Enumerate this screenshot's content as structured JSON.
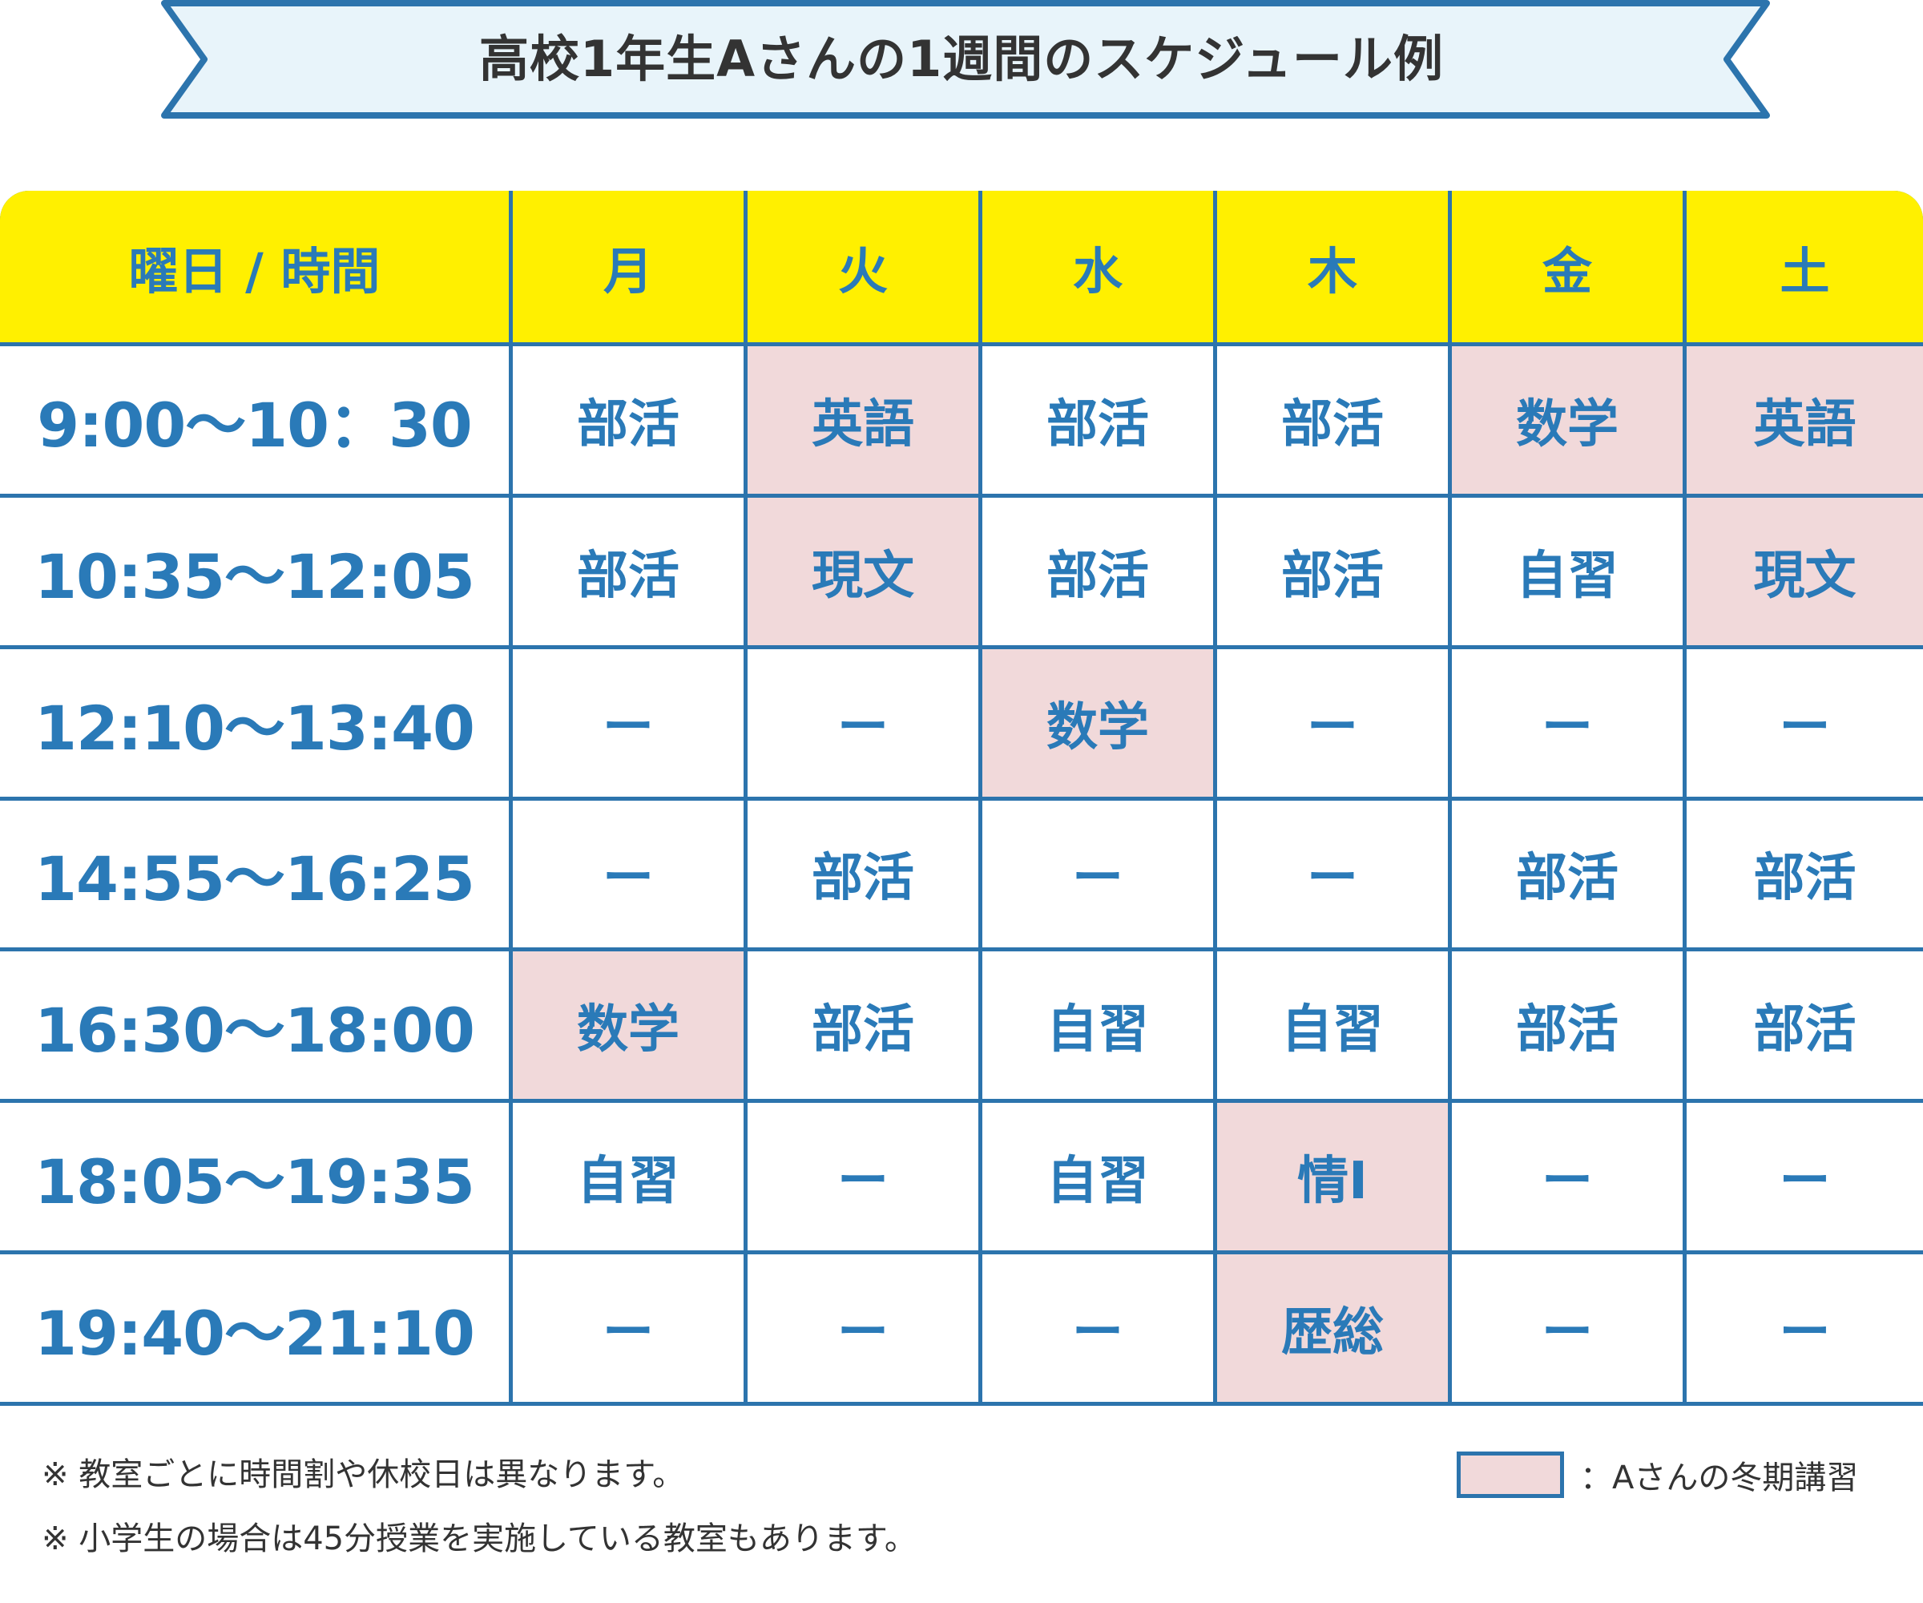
{
  "title": "高校1年生Aさんの1週間のスケジュール例",
  "colors": {
    "header_bg": "#fff000",
    "grid_line": "#2c74ad",
    "text_blue": "#2a7ab8",
    "winter_course_bg": "#f1d9da",
    "banner_bg": "#e8f4fa",
    "banner_border": "#2c74ad"
  },
  "table": {
    "corner_label": "曜日 / 時間",
    "days": [
      "月",
      "火",
      "水",
      "木",
      "金",
      "土"
    ],
    "rows": [
      {
        "time": "9:00〜10：30",
        "cells": [
          {
            "text": "部活",
            "winter": false
          },
          {
            "text": "英語",
            "winter": true
          },
          {
            "text": "部活",
            "winter": false
          },
          {
            "text": "部活",
            "winter": false
          },
          {
            "text": "数学",
            "winter": true
          },
          {
            "text": "英語",
            "winter": true
          }
        ]
      },
      {
        "time": "10:35〜12:05",
        "cells": [
          {
            "text": "部活",
            "winter": false
          },
          {
            "text": "現文",
            "winter": true
          },
          {
            "text": "部活",
            "winter": false
          },
          {
            "text": "部活",
            "winter": false
          },
          {
            "text": "自習",
            "winter": false
          },
          {
            "text": "現文",
            "winter": true
          }
        ]
      },
      {
        "time": "12:10〜13:40",
        "cells": [
          {
            "text": "ー",
            "winter": false
          },
          {
            "text": "ー",
            "winter": false
          },
          {
            "text": "数学",
            "winter": true
          },
          {
            "text": "ー",
            "winter": false
          },
          {
            "text": "ー",
            "winter": false
          },
          {
            "text": "ー",
            "winter": false
          }
        ]
      },
      {
        "time": "14:55〜16:25",
        "cells": [
          {
            "text": "ー",
            "winter": false
          },
          {
            "text": "部活",
            "winter": false
          },
          {
            "text": "ー",
            "winter": false
          },
          {
            "text": "ー",
            "winter": false
          },
          {
            "text": "部活",
            "winter": false
          },
          {
            "text": "部活",
            "winter": false
          }
        ]
      },
      {
        "time": "16:30〜18:00",
        "cells": [
          {
            "text": "数学",
            "winter": true
          },
          {
            "text": "部活",
            "winter": false
          },
          {
            "text": "自習",
            "winter": false
          },
          {
            "text": "自習",
            "winter": false
          },
          {
            "text": "部活",
            "winter": false
          },
          {
            "text": "部活",
            "winter": false
          }
        ]
      },
      {
        "time": "18:05〜19:35",
        "cells": [
          {
            "text": "自習",
            "winter": false
          },
          {
            "text": "ー",
            "winter": false
          },
          {
            "text": "自習",
            "winter": false
          },
          {
            "text": "情Ⅰ",
            "winter": true
          },
          {
            "text": "ー",
            "winter": false
          },
          {
            "text": "ー",
            "winter": false
          }
        ]
      },
      {
        "time": "19:40〜21:10",
        "cells": [
          {
            "text": "ー",
            "winter": false
          },
          {
            "text": "ー",
            "winter": false
          },
          {
            "text": "ー",
            "winter": false
          },
          {
            "text": "歴総",
            "winter": true
          },
          {
            "text": "ー",
            "winter": false
          },
          {
            "text": "ー",
            "winter": false
          }
        ]
      }
    ]
  },
  "notes": [
    "※ 教室ごとに時間割や休校日は異なります。",
    "※ 小学生の場合は45分授業を実施している教室もあります。"
  ],
  "legend": {
    "label": "：Aさんの冬期講習"
  }
}
